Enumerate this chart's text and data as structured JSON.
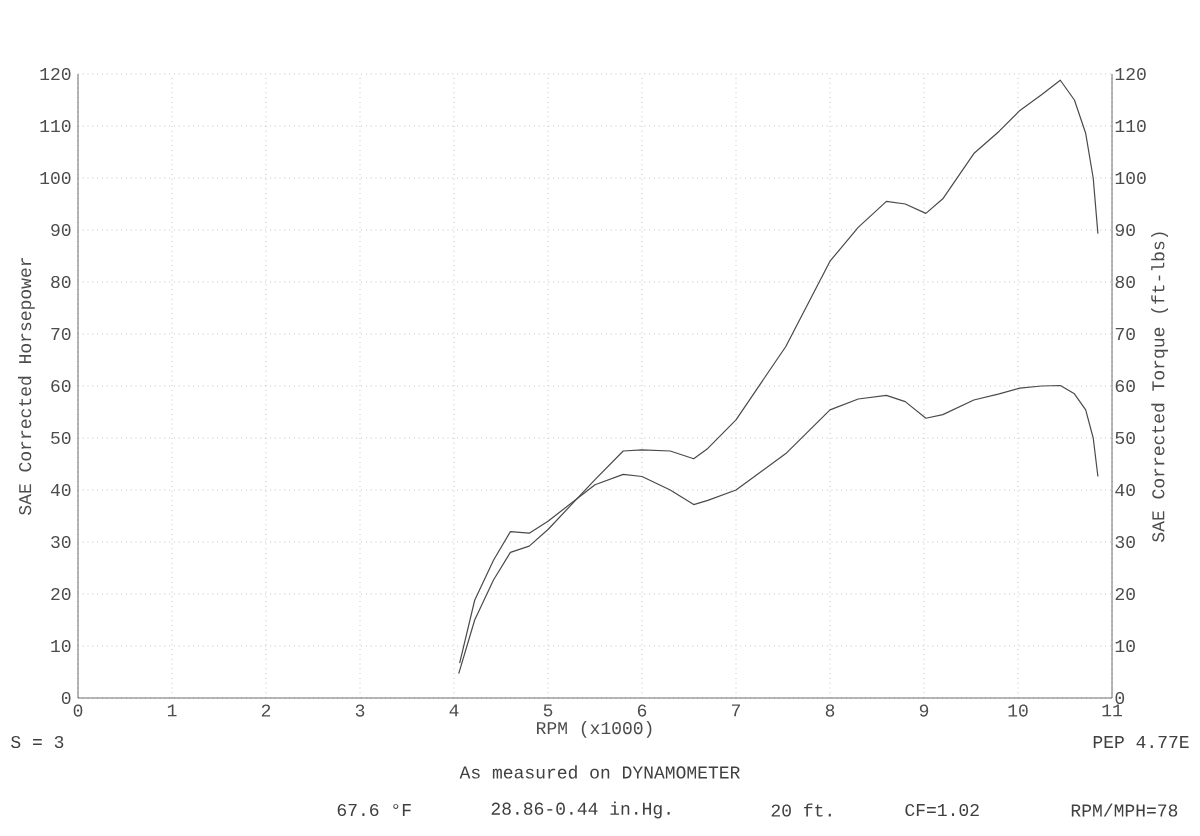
{
  "chart_data": {
    "type": "line",
    "xlabel": "RPM (x1000)",
    "ylabel": "SAE Corrected Horsepower",
    "y2label": "SAE Corrected Torque (ft-lbs)",
    "series": [
      {
        "color": "#4a4a4a",
        "x": [
          4.05,
          4.22,
          4.42,
          4.6,
          4.8,
          5.0,
          5.5,
          5.8,
          6.0,
          6.3,
          6.55,
          6.7,
          7.0,
          7.53,
          8.0,
          8.3,
          8.6,
          8.8,
          9.02,
          9.2,
          9.53,
          9.8,
          10.02,
          10.25,
          10.45,
          10.6,
          10.72,
          10.8,
          10.85
        ],
        "values": [
          4.7,
          15,
          22.7,
          28,
          29.2,
          32.4,
          42,
          47.5,
          47.7,
          47.5,
          46,
          48,
          53.5,
          67.6,
          84,
          90.5,
          95.5,
          95,
          93.2,
          96,
          104.7,
          109,
          113,
          116,
          118.8,
          115,
          108.6,
          100,
          89.3
        ]
      },
      {
        "color": "#4a4a4a",
        "axis": "y2",
        "x": [
          4.06,
          4.22,
          4.42,
          4.6,
          4.8,
          5.0,
          5.5,
          5.8,
          6.0,
          6.3,
          6.55,
          6.7,
          7.0,
          7.53,
          8.0,
          8.3,
          8.6,
          8.8,
          9.02,
          9.2,
          9.53,
          9.8,
          10.02,
          10.25,
          10.45,
          10.6,
          10.72,
          10.8,
          10.85
        ],
        "values": [
          6.7,
          18.8,
          26.5,
          32,
          31.7,
          34,
          41,
          43,
          42.6,
          40,
          37.2,
          38,
          40,
          47,
          55.4,
          57.5,
          58.2,
          57,
          53.8,
          54.5,
          57.3,
          58.5,
          59.6,
          60,
          60.1,
          58.5,
          55.4,
          50,
          42.6
        ]
      }
    ],
    "xlim": [
      0,
      11
    ],
    "xticks": [
      0,
      1,
      2,
      3,
      4,
      5,
      6,
      7,
      8,
      9,
      10,
      11
    ],
    "ylim": [
      0,
      120
    ],
    "yticks": [
      0,
      10,
      20,
      30,
      40,
      50,
      60,
      70,
      80,
      90,
      100,
      110,
      120
    ],
    "y2lim": [
      0,
      120
    ],
    "y2ticks": [
      0,
      10,
      20,
      30,
      40,
      50,
      60,
      70,
      80,
      90,
      100,
      110,
      120
    ],
    "grid": true,
    "annotations": [
      "S = 3",
      "PEP 4.77E",
      "As measured on DYNAMOMETER",
      "67.6 °F",
      "28.86-0.44 in.Hg.",
      "20 ft.",
      "CF=1.02",
      "RPM/MPH=78"
    ]
  }
}
